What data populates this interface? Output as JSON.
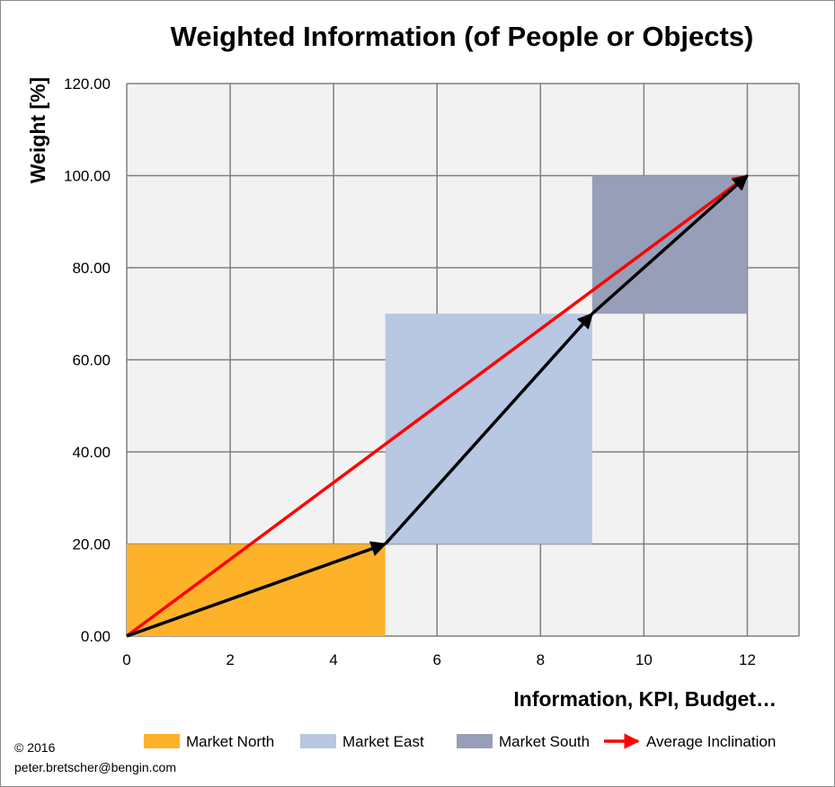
{
  "chart_data": {
    "type": "area",
    "title": "Weighted Information (of People or Objects)",
    "xlabel": "Information, KPI, Budget…",
    "ylabel": "Weight [%]",
    "xlim": [
      0,
      13
    ],
    "ylim": [
      0,
      120
    ],
    "x_ticks": [
      "0",
      "2",
      "4",
      "6",
      "8",
      "10",
      "12"
    ],
    "y_ticks": [
      "0.00",
      "20.00",
      "40.00",
      "60.00",
      "80.00",
      "100.00",
      "120.00"
    ],
    "grid": true,
    "legend_position": "bottom",
    "series": [
      {
        "name": "Market North",
        "kind": "rect",
        "x": [
          0,
          5
        ],
        "y": [
          0,
          20
        ],
        "color": "#FDB22A"
      },
      {
        "name": "Market East",
        "kind": "rect",
        "x": [
          5,
          9
        ],
        "y": [
          20,
          70
        ],
        "color": "#B8C7E2"
      },
      {
        "name": "Market South",
        "kind": "rect",
        "x": [
          9,
          12
        ],
        "y": [
          70,
          100
        ],
        "color": "#979EB8"
      },
      {
        "name": "Average Inclination",
        "kind": "arrow",
        "x": [
          0,
          12
        ],
        "y": [
          0,
          100
        ],
        "color": "#FF0000"
      }
    ],
    "path_arrows": [
      {
        "x": [
          0,
          5
        ],
        "y": [
          0,
          20
        ],
        "color": "#000000"
      },
      {
        "x": [
          5,
          9
        ],
        "y": [
          20,
          70
        ],
        "color": "#000000"
      },
      {
        "x": [
          9,
          12
        ],
        "y": [
          70,
          100
        ],
        "color": "#000000"
      }
    ]
  },
  "footer": {
    "copyright": "© 2016",
    "email": "peter.bretscher@bengin.com"
  }
}
